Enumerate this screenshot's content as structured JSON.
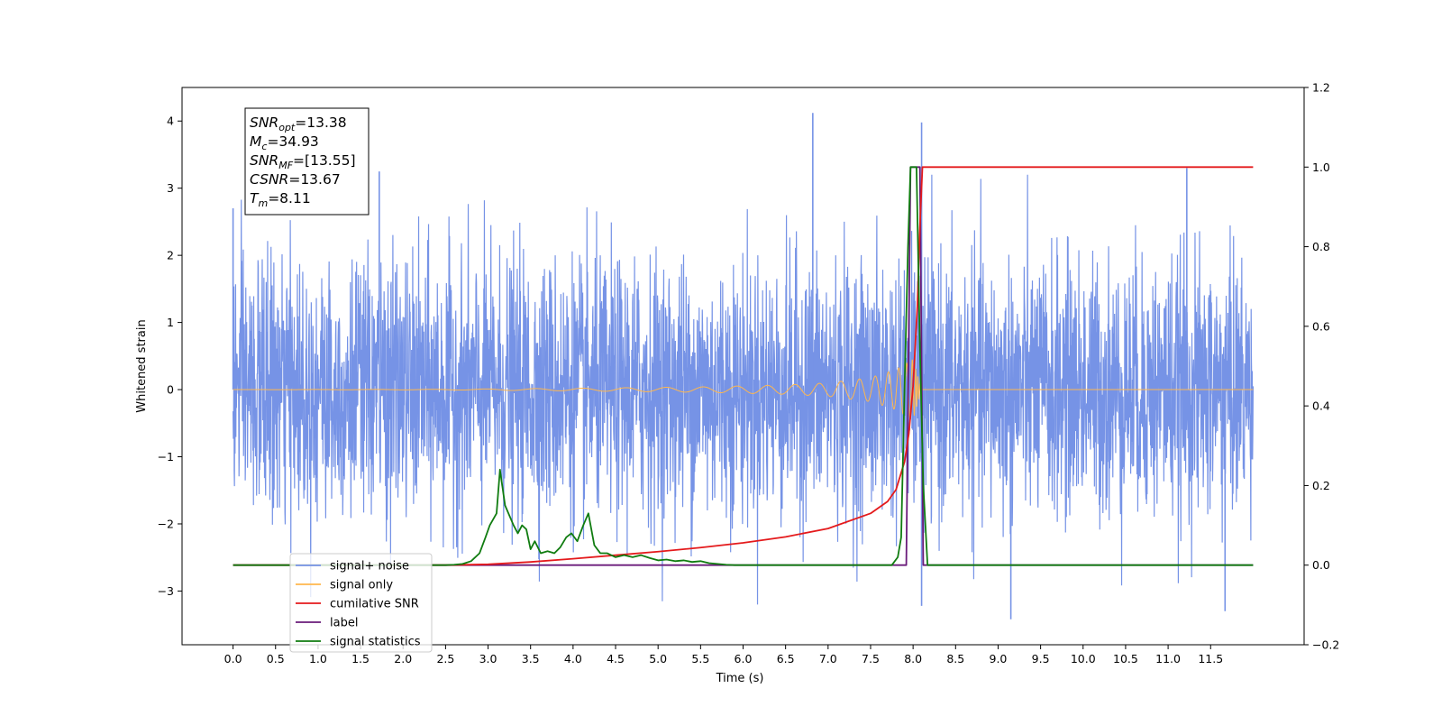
{
  "chart_data": {
    "type": "line",
    "xlabel": "Time (s)",
    "ylabel": "Whitened strain",
    "xlim": [
      -0.6,
      12.6
    ],
    "ylim": [
      -3.8,
      4.5
    ],
    "ylim_right": [
      -0.2,
      1.2
    ],
    "xticks": [
      0.0,
      0.5,
      1.0,
      1.5,
      2.0,
      2.5,
      3.0,
      3.5,
      4.0,
      4.5,
      5.0,
      5.5,
      6.0,
      6.5,
      7.0,
      7.5,
      8.0,
      8.5,
      9.0,
      9.5,
      10.0,
      10.5,
      11.0,
      11.5
    ],
    "xtick_labels": [
      "0.0",
      "0.5",
      "1.0",
      "1.5",
      "2.0",
      "2.5",
      "3.0",
      "3.5",
      "4.0",
      "4.5",
      "5.0",
      "5.5",
      "6.0",
      "6.5",
      "7.0",
      "7.5",
      "8.0",
      "8.5",
      "9.0",
      "9.5",
      "10.0",
      "10.5",
      "11.0",
      "11.5"
    ],
    "yticks_left": [
      -3,
      -2,
      -1,
      0,
      1,
      2,
      3,
      4
    ],
    "ytick_labels_left": [
      "−3",
      "−2",
      "−1",
      "0",
      "1",
      "2",
      "3",
      "4"
    ],
    "yticks_right": [
      -0.2,
      0.0,
      0.2,
      0.4,
      0.6,
      0.8,
      1.0,
      1.2
    ],
    "ytick_labels_right": [
      "−0.2",
      "0.0",
      "0.2",
      "0.4",
      "0.6",
      "0.8",
      "1.0",
      "1.2"
    ],
    "grid": false,
    "legend_position": "lower-left",
    "series": [
      {
        "name": "signal+ noise",
        "axis": "left",
        "color": "#7693e6",
        "style": "dense noisy trace, approx. std 1.0, range -3.4 to 4.1, t = 0 to 12 s",
        "notable_peaks": [
          [
            6.82,
            4.12
          ],
          [
            8.1,
            3.98
          ],
          [
            1.72,
            3.25
          ],
          [
            11.22,
            3.3
          ],
          [
            0.0,
            2.7
          ],
          [
            9.15,
            -3.42
          ],
          [
            8.1,
            -3.22
          ],
          [
            11.67,
            -3.3
          ]
        ]
      },
      {
        "name": "signal only",
        "axis": "left",
        "color": "#ffb74d",
        "style": "chirp: amplitude rising from ~0 to ~0.45 near t=8.0 s, 0 after merger",
        "amplitude": [
          [
            0.0,
            0.0
          ],
          [
            2.5,
            0.005
          ],
          [
            4.0,
            0.02
          ],
          [
            5.5,
            0.04
          ],
          [
            6.5,
            0.07
          ],
          [
            7.0,
            0.1
          ],
          [
            7.5,
            0.18
          ],
          [
            7.8,
            0.3
          ],
          [
            8.0,
            0.45
          ],
          [
            8.1,
            0.0
          ],
          [
            12.0,
            0.0
          ]
        ]
      },
      {
        "name": "cumilative SNR",
        "axis": "right",
        "color": "#e41a1c",
        "points": [
          [
            0.0,
            0.0
          ],
          [
            2.5,
            0.0
          ],
          [
            3.0,
            0.002
          ],
          [
            3.5,
            0.008
          ],
          [
            4.0,
            0.016
          ],
          [
            4.5,
            0.025
          ],
          [
            5.0,
            0.034
          ],
          [
            5.5,
            0.044
          ],
          [
            6.0,
            0.056
          ],
          [
            6.5,
            0.071
          ],
          [
            7.0,
            0.092
          ],
          [
            7.5,
            0.13
          ],
          [
            7.7,
            0.16
          ],
          [
            7.8,
            0.19
          ],
          [
            7.9,
            0.26
          ],
          [
            7.95,
            0.33
          ],
          [
            8.0,
            0.45
          ],
          [
            8.05,
            0.65
          ],
          [
            8.08,
            0.85
          ],
          [
            8.11,
            1.0
          ],
          [
            11.0,
            1.0
          ],
          [
            12.0,
            1.0
          ]
        ]
      },
      {
        "name": "label",
        "axis": "right",
        "color": "#6a1b7a",
        "points": [
          [
            0.0,
            0.0
          ],
          [
            7.92,
            0.0
          ],
          [
            7.97,
            1.0
          ],
          [
            8.08,
            1.0
          ],
          [
            8.12,
            0.0
          ],
          [
            12.0,
            0.0
          ]
        ]
      },
      {
        "name": "signal statistics",
        "axis": "right",
        "color": "#107c10",
        "points": [
          [
            0.0,
            0.0
          ],
          [
            2.5,
            0.0
          ],
          [
            2.6,
            0.001
          ],
          [
            2.7,
            0.003
          ],
          [
            2.8,
            0.01
          ],
          [
            2.9,
            0.03
          ],
          [
            2.97,
            0.07
          ],
          [
            3.02,
            0.1
          ],
          [
            3.1,
            0.13
          ],
          [
            3.14,
            0.24
          ],
          [
            3.2,
            0.15
          ],
          [
            3.3,
            0.1
          ],
          [
            3.35,
            0.08
          ],
          [
            3.4,
            0.1
          ],
          [
            3.45,
            0.09
          ],
          [
            3.5,
            0.04
          ],
          [
            3.55,
            0.06
          ],
          [
            3.62,
            0.03
          ],
          [
            3.7,
            0.035
          ],
          [
            3.78,
            0.03
          ],
          [
            3.85,
            0.045
          ],
          [
            3.92,
            0.07
          ],
          [
            3.98,
            0.08
          ],
          [
            4.05,
            0.06
          ],
          [
            4.12,
            0.1
          ],
          [
            4.18,
            0.13
          ],
          [
            4.25,
            0.05
          ],
          [
            4.32,
            0.03
          ],
          [
            4.4,
            0.03
          ],
          [
            4.45,
            0.025
          ],
          [
            4.5,
            0.02
          ],
          [
            4.6,
            0.025
          ],
          [
            4.7,
            0.02
          ],
          [
            4.8,
            0.025
          ],
          [
            4.9,
            0.018
          ],
          [
            5.0,
            0.012
          ],
          [
            5.1,
            0.014
          ],
          [
            5.2,
            0.01
          ],
          [
            5.3,
            0.012
          ],
          [
            5.4,
            0.008
          ],
          [
            5.5,
            0.01
          ],
          [
            5.6,
            0.005
          ],
          [
            5.7,
            0.003
          ],
          [
            5.8,
            0.001
          ],
          [
            5.9,
            0.0
          ],
          [
            7.75,
            0.0
          ],
          [
            7.82,
            0.02
          ],
          [
            7.86,
            0.07
          ],
          [
            7.9,
            0.45
          ],
          [
            7.94,
            0.8
          ],
          [
            7.97,
            1.0
          ],
          [
            8.04,
            1.0
          ],
          [
            8.08,
            0.55
          ],
          [
            8.12,
            0.2
          ],
          [
            8.17,
            0.0
          ],
          [
            12.0,
            0.0
          ]
        ]
      }
    ],
    "legend": [
      {
        "label": "signal+ noise",
        "color": "#7693e6"
      },
      {
        "label": "signal only",
        "color": "#ffb74d"
      },
      {
        "label": "cumilative SNR",
        "color": "#e41a1c"
      },
      {
        "label": "label",
        "color": "#6a1b7a"
      },
      {
        "label": "signal statistics",
        "color": "#107c10"
      }
    ],
    "annotation": [
      {
        "base": "SNR",
        "sub": "opt",
        "value": "=13.38"
      },
      {
        "base": "M",
        "sub": "c",
        "value": "=34.93"
      },
      {
        "base": "SNR",
        "sub": "MF",
        "value": "=[13.55]"
      },
      {
        "base": "CSNR",
        "sub": "",
        "value": "=13.67"
      },
      {
        "base": "T",
        "sub": "m",
        "value": "=8.11"
      }
    ]
  }
}
